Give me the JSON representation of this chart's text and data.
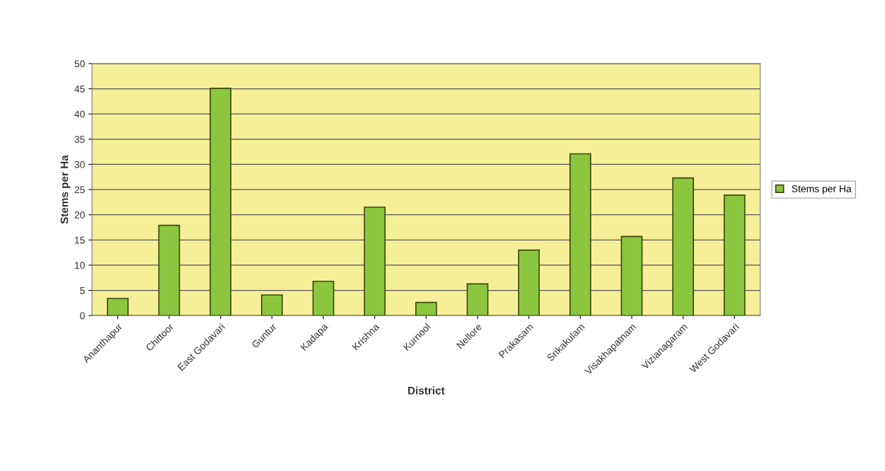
{
  "chart_data": {
    "type": "bar",
    "xlabel": "District",
    "ylabel": "Stems per Ha",
    "categories": [
      "Ananthapur",
      "Chittoor",
      "East Godavari",
      "Guntur",
      "Kadapa",
      "Krishna",
      "Kurnool",
      "Nellore",
      "Prakasam",
      "Srikakulam",
      "Visakhapatnam",
      "Vizianagaram",
      "West Godavari"
    ],
    "series": [
      {
        "name": "Stems per Ha",
        "color": "#8cc63e",
        "values": [
          3.4,
          17.9,
          45.1,
          4.1,
          6.8,
          21.5,
          2.6,
          6.3,
          13.0,
          32.1,
          15.7,
          27.3,
          23.9
        ]
      }
    ],
    "ylim": [
      0,
      50
    ],
    "yticks": [
      0,
      5,
      10,
      15,
      20,
      25,
      30,
      35,
      40,
      45,
      50
    ],
    "grid": "y",
    "legend": "right"
  }
}
